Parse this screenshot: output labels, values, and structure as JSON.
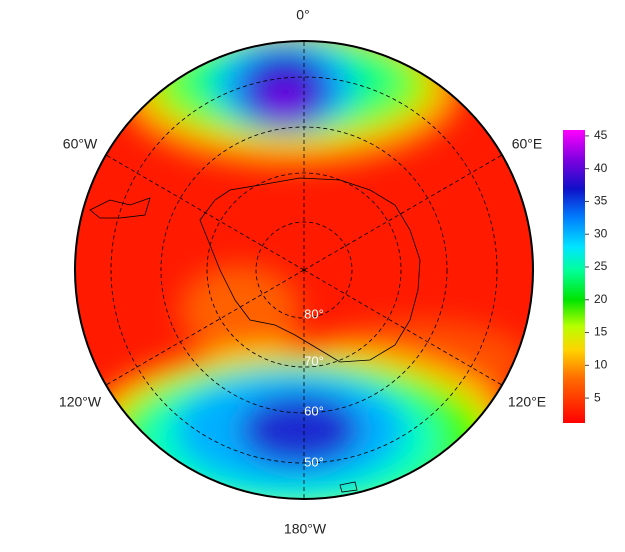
{
  "map": {
    "longitude_labels": [
      "0°",
      "60°E",
      "120°E",
      "180°W",
      "120°W",
      "60°W"
    ],
    "latitude_labels": [
      "80°",
      "70°",
      "60°",
      "50°"
    ]
  },
  "colorbar": {
    "lim": [
      1.2,
      45.9
    ],
    "ticks": [
      5,
      10,
      15,
      20,
      25,
      30,
      35,
      40,
      45
    ]
  }
}
